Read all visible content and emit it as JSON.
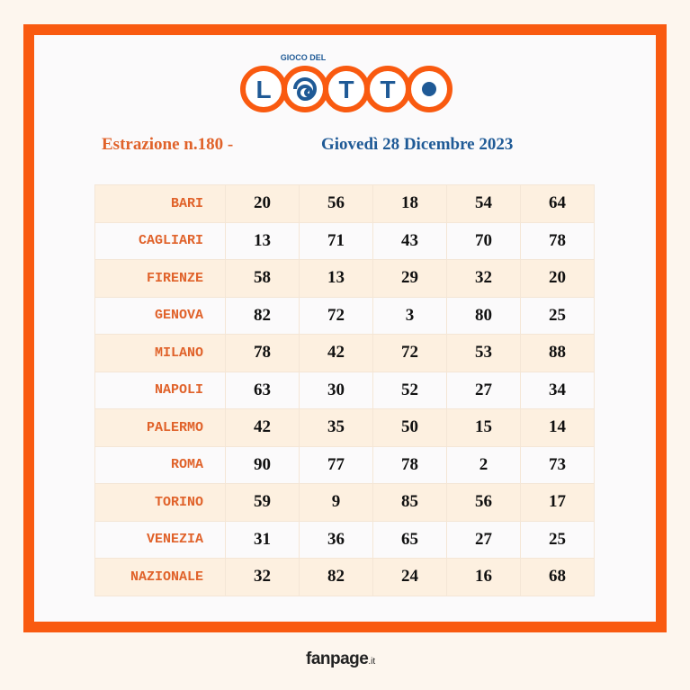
{
  "logo": {
    "top": "GIOCO DEL",
    "letters": [
      "L",
      "T",
      "T"
    ]
  },
  "header": {
    "draw": "Estrazione n.180 -",
    "date": "Giovedì 28 Dicembre 2023"
  },
  "table": {
    "rows": [
      [
        "BARI",
        "20",
        "56",
        "18",
        "54",
        "64"
      ],
      [
        "CAGLIARI",
        "13",
        "71",
        "43",
        "70",
        "78"
      ],
      [
        "FIRENZE",
        "58",
        "13",
        "29",
        "32",
        "20"
      ],
      [
        "GENOVA",
        "82",
        "72",
        "3",
        "80",
        "25"
      ],
      [
        "MILANO",
        "78",
        "42",
        "72",
        "53",
        "88"
      ],
      [
        "NAPOLI",
        "63",
        "30",
        "52",
        "27",
        "34"
      ],
      [
        "PALERMO",
        "42",
        "35",
        "50",
        "15",
        "14"
      ],
      [
        "ROMA",
        "90",
        "77",
        "78",
        "2",
        "73"
      ],
      [
        "TORINO",
        "59",
        "9",
        "85",
        "56",
        "17"
      ],
      [
        "VENEZIA",
        "31",
        "36",
        "65",
        "27",
        "25"
      ],
      [
        "NAZIONALE",
        "32",
        "82",
        "24",
        "16",
        "68"
      ]
    ]
  },
  "footer": {
    "brand": "fanpage",
    "suffix": ".it"
  }
}
